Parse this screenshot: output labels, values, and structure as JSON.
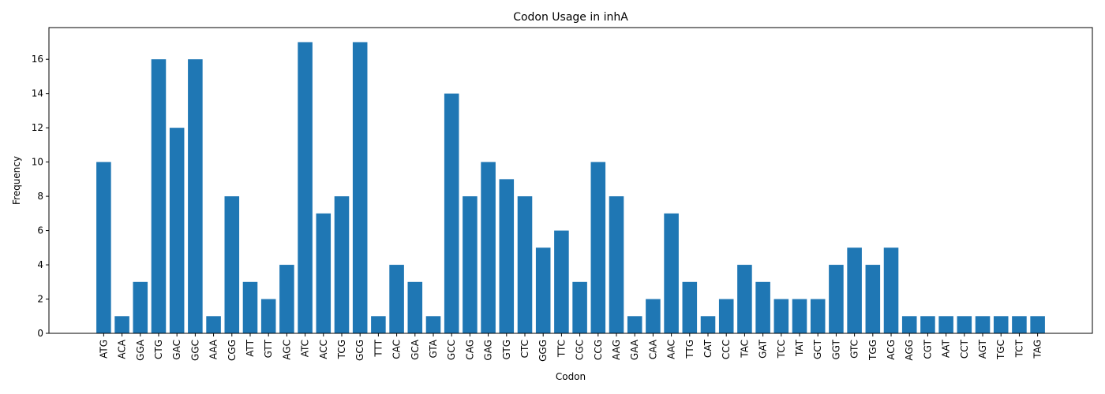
{
  "chart_data": {
    "type": "bar",
    "title": "Codon Usage in inhA",
    "xlabel": "Codon",
    "ylabel": "Frequency",
    "ylim": [
      0,
      17.85
    ],
    "yticks": [
      0,
      2,
      4,
      6,
      8,
      10,
      12,
      14,
      16
    ],
    "grid": false,
    "bar_color": "#1f77b4",
    "categories": [
      "ATG",
      "ACA",
      "GGA",
      "CTG",
      "GAC",
      "GGC",
      "AAA",
      "CGG",
      "ATT",
      "GTT",
      "AGC",
      "ATC",
      "ACC",
      "TCG",
      "GCG",
      "TTT",
      "CAC",
      "GCA",
      "GTA",
      "GCC",
      "CAG",
      "GAG",
      "GTG",
      "CTC",
      "GGG",
      "TTC",
      "CGC",
      "CCG",
      "AAG",
      "GAA",
      "CAA",
      "AAC",
      "TTG",
      "CAT",
      "CCC",
      "TAC",
      "GAT",
      "TCC",
      "TAT",
      "GCT",
      "GGT",
      "GTC",
      "TGG",
      "ACG",
      "AGG",
      "CGT",
      "AAT",
      "CCT",
      "AGT",
      "TGC",
      "TCT",
      "TAG"
    ],
    "values": [
      10,
      1,
      3,
      16,
      12,
      16,
      1,
      8,
      3,
      2,
      4,
      17,
      7,
      8,
      17,
      1,
      4,
      3,
      1,
      14,
      8,
      10,
      9,
      8,
      5,
      6,
      3,
      10,
      8,
      1,
      2,
      7,
      3,
      1,
      2,
      4,
      3,
      2,
      2,
      2,
      4,
      5,
      4,
      5,
      1,
      1,
      1,
      1,
      1,
      1,
      1,
      1
    ]
  }
}
